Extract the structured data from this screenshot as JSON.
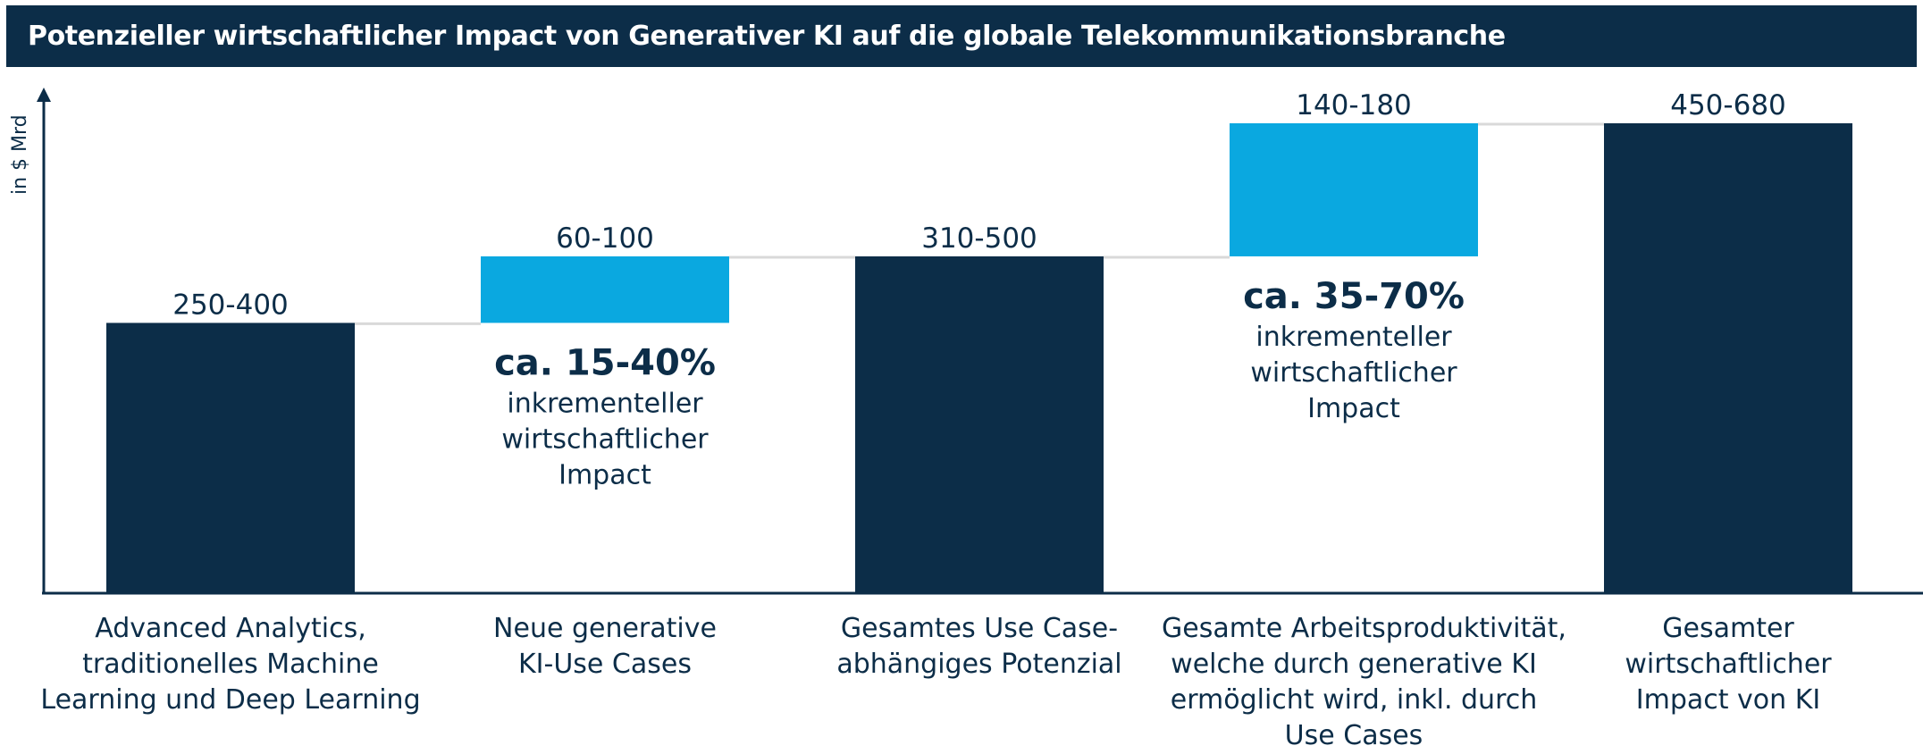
{
  "title": "Potenzieller wirtschaftlicher Impact von Generativer KI auf die globale Telekommunikationsbranche",
  "colors": {
    "dark": "#0c2d48",
    "light": "#0aa8e0",
    "connector": "#d9d9d9",
    "title_bg": "#0c2d48"
  },
  "chart_data": {
    "type": "bar",
    "subtype": "waterfall",
    "ylabel": "in $ Mrd",
    "categories": [
      "Advanced Analytics, traditionelles Machine Learning und Deep Learning",
      "Neue generative KI-Use Cases",
      "Gesamtes Use Case-abhängiges Potenzial",
      "Gesamte Arbeitsproduktivität, welche durch generative KI ermöglicht wird, inkl. durch Use Cases",
      "Gesamter wirtschaftlicher Impact von KI"
    ],
    "category_lines": [
      [
        "Advanced Analytics,",
        "traditionelles Machine",
        "Learning und Deep Learning"
      ],
      [
        "Neue generative",
        "KI-Use Cases"
      ],
      [
        "Gesamtes Use Case-",
        "abhängiges Potenzial"
      ],
      [
        "Gesamte Arbeitsproduktivität,",
        "welche durch generative KI",
        "ermöglicht wird, inkl. durch",
        "Use Cases"
      ],
      [
        "Gesamter",
        "wirtschaftlicher",
        "Impact von KI"
      ]
    ],
    "value_labels": [
      "250-400",
      "60-100",
      "310-500",
      "140-180",
      "450-680"
    ],
    "bars": [
      {
        "kind": "total",
        "start": 0,
        "end": 325
      },
      {
        "kind": "increment",
        "start": 325,
        "end": 405
      },
      {
        "kind": "total",
        "start": 0,
        "end": 405
      },
      {
        "kind": "increment",
        "start": 405,
        "end": 565
      },
      {
        "kind": "total",
        "start": 0,
        "end": 565
      }
    ],
    "annotations": [
      {
        "bar": 1,
        "headline": "ca. 15-40%",
        "lines": [
          "inkrementeller",
          "wirtschaftlicher",
          "Impact"
        ]
      },
      {
        "bar": 3,
        "headline": "ca. 35-70%",
        "lines": [
          "inkrementeller",
          "wirtschaftlicher",
          "Impact"
        ]
      }
    ],
    "ylim": [
      0,
      565
    ],
    "grid": false,
    "legend": "none"
  }
}
